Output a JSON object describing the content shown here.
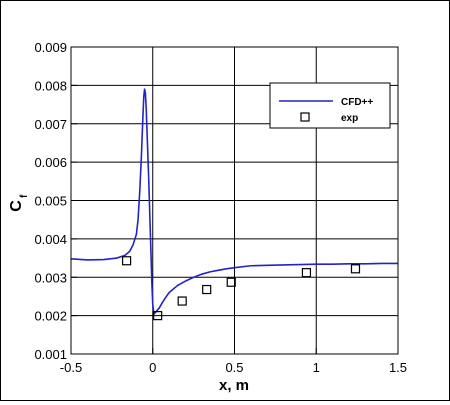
{
  "chart_data": {
    "type": "line",
    "xlabel": "x, m",
    "ylabel_main": "C",
    "ylabel_sub": "f",
    "xlim": [
      -0.5,
      1.5
    ],
    "ylim": [
      0.001,
      0.009
    ],
    "xticks": [
      -0.5,
      0,
      0.5,
      1,
      1.5
    ],
    "xtick_labels": [
      "-0.5",
      "0",
      "0.5",
      "1",
      "1.5"
    ],
    "yticks": [
      0.001,
      0.002,
      0.003,
      0.004,
      0.005,
      0.006,
      0.007,
      0.008,
      0.009
    ],
    "ytick_labels": [
      "0.001",
      "0.002",
      "0.003",
      "0.004",
      "0.005",
      "0.006",
      "0.007",
      "0.008",
      "0.009"
    ],
    "grid": true,
    "legend_position": "top-right",
    "series": [
      {
        "name": "CFD++",
        "style": "line",
        "color": "#2323c8",
        "x": [
          -0.5,
          -0.4,
          -0.3,
          -0.22,
          -0.17,
          -0.14,
          -0.12,
          -0.1,
          -0.09,
          -0.08,
          -0.07,
          -0.06,
          -0.055,
          -0.05,
          -0.045,
          -0.04,
          -0.035,
          -0.03,
          -0.025,
          -0.02,
          -0.015,
          -0.01,
          -0.005,
          0.0,
          0.005,
          0.01,
          0.02,
          0.04,
          0.06,
          0.08,
          0.1,
          0.15,
          0.2,
          0.25,
          0.3,
          0.35,
          0.4,
          0.45,
          0.5,
          0.6,
          0.7,
          0.8,
          0.9,
          1.0,
          1.1,
          1.2,
          1.3,
          1.4,
          1.5
        ],
        "y": [
          0.00348,
          0.00345,
          0.00346,
          0.0035,
          0.00357,
          0.00368,
          0.00385,
          0.00412,
          0.0045,
          0.0052,
          0.0061,
          0.0072,
          0.0077,
          0.0079,
          0.0078,
          0.0074,
          0.0068,
          0.0062,
          0.0056,
          0.0049,
          0.0042,
          0.0035,
          0.0028,
          0.0023,
          0.0021,
          0.00205,
          0.0021,
          0.0022,
          0.00235,
          0.00248,
          0.0026,
          0.00278,
          0.0029,
          0.003,
          0.00308,
          0.00314,
          0.00318,
          0.00322,
          0.00325,
          0.0033,
          0.00331,
          0.00332,
          0.00333,
          0.00334,
          0.00334,
          0.00335,
          0.00335,
          0.00336,
          0.00336
        ]
      },
      {
        "name": "exp",
        "style": "markers",
        "marker": "open-square",
        "x": [
          -0.16,
          0.03,
          0.18,
          0.33,
          0.48,
          0.94,
          1.24
        ],
        "y": [
          0.00343,
          0.002,
          0.00238,
          0.00268,
          0.00287,
          0.00312,
          0.00322
        ]
      }
    ]
  }
}
